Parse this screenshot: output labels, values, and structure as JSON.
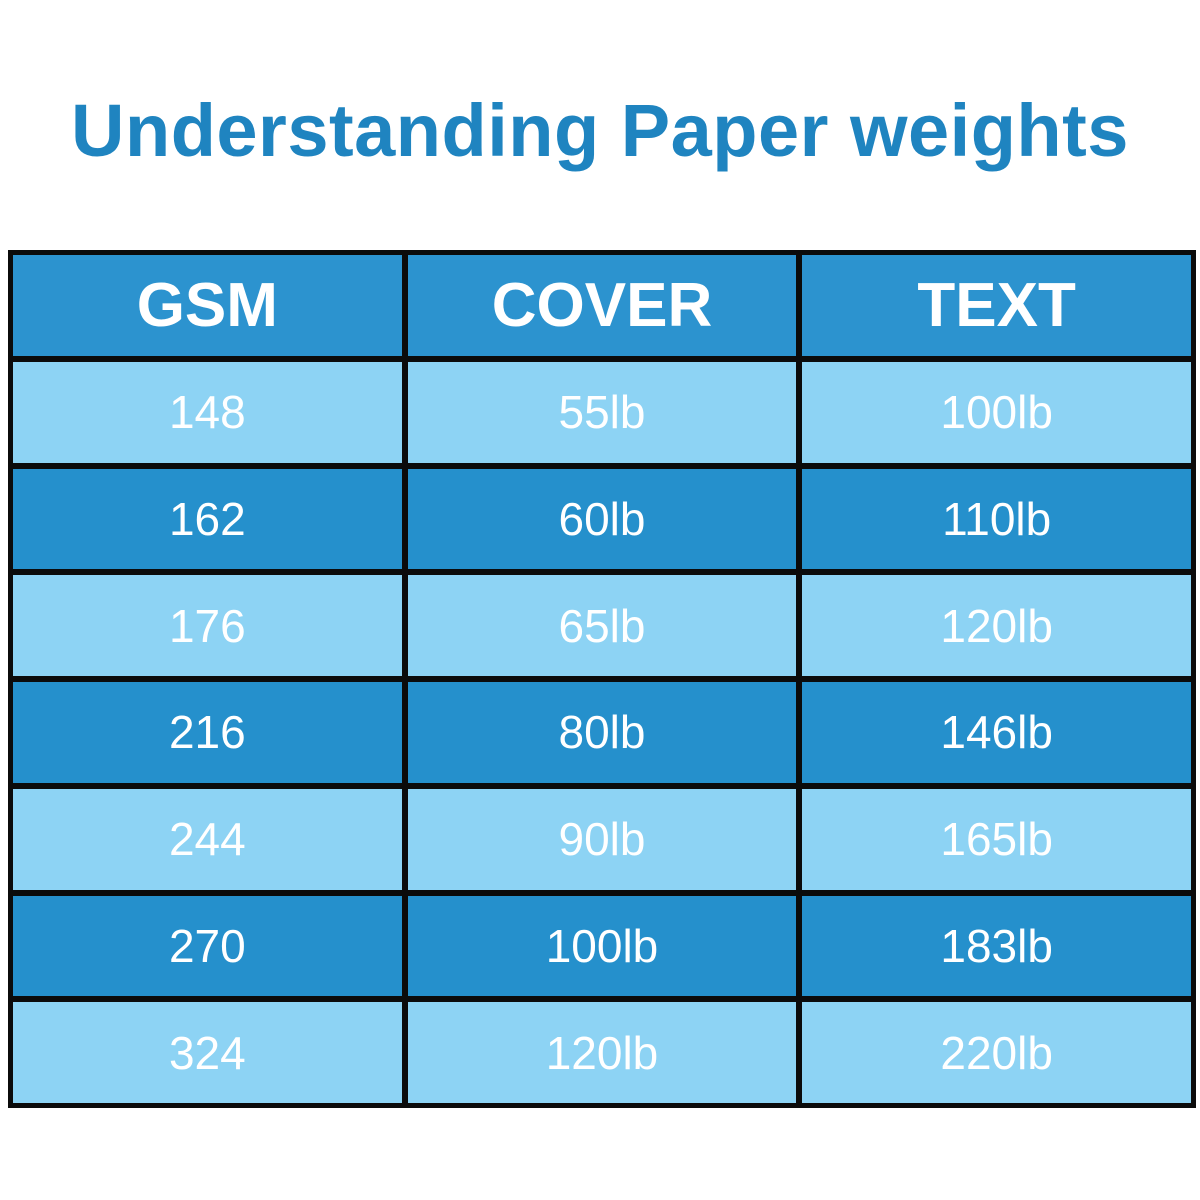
{
  "title": "Understanding Paper weights",
  "colors": {
    "title": "#1f84c0",
    "header_bg": "#2c93cf",
    "dark_row": "#2590cc",
    "light_row": "#8dd3f4",
    "border": "#0b0b0b"
  },
  "table": {
    "headers": [
      "GSM",
      "COVER",
      "TEXT"
    ],
    "rows": [
      [
        "148",
        "55lb",
        "100lb"
      ],
      [
        "162",
        "60lb",
        "110lb"
      ],
      [
        "176",
        "65lb",
        "120lb"
      ],
      [
        "216",
        "80lb",
        "146lb"
      ],
      [
        "244",
        "90lb",
        "165lb"
      ],
      [
        "270",
        "100lb",
        "183lb"
      ],
      [
        "324",
        "120lb",
        "220lb"
      ]
    ]
  }
}
